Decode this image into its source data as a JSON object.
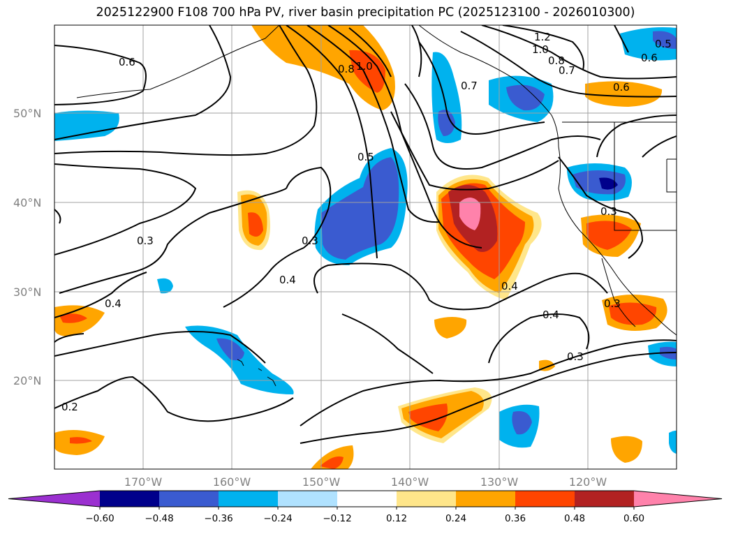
{
  "title": "2025122900 F108 700 hPa PV, river basin precipitation PC (2025123100 - 2026010300)",
  "lat_labels": [
    "50°N",
    "40°N",
    "30°N",
    "20°N"
  ],
  "lon_labels": [
    "170°W",
    "160°W",
    "150°W",
    "140°W",
    "130°W",
    "120°W"
  ],
  "contour_labels": [
    "0.6",
    "0.8",
    "1.0",
    "1.2",
    "1.0",
    "0.8",
    "0.7",
    "0.6",
    "0.5",
    "0.6",
    "0.5",
    "0.7",
    "0.3",
    "0.3",
    "0.4",
    "0.4",
    "0.4",
    "0.3",
    "0.3",
    "0.4",
    "0.3",
    "0.2"
  ],
  "colorbar": {
    "ticks": [
      "−0.60",
      "−0.48",
      "−0.36",
      "−0.24",
      "−0.12",
      "0.12",
      "0.24",
      "0.36",
      "0.48",
      "0.60"
    ],
    "colors": [
      "#9b30d0",
      "#00008b",
      "#3a5bd0",
      "#00b2ee",
      "#b0e2ff",
      "#ffffff",
      "#ffe68a",
      "#ffa500",
      "#ff4500",
      "#b22222",
      "#ff82ab"
    ]
  },
  "colors": {
    "grid": "#a0a0a0",
    "axis_label": "#808080",
    "contour": "#000000"
  }
}
